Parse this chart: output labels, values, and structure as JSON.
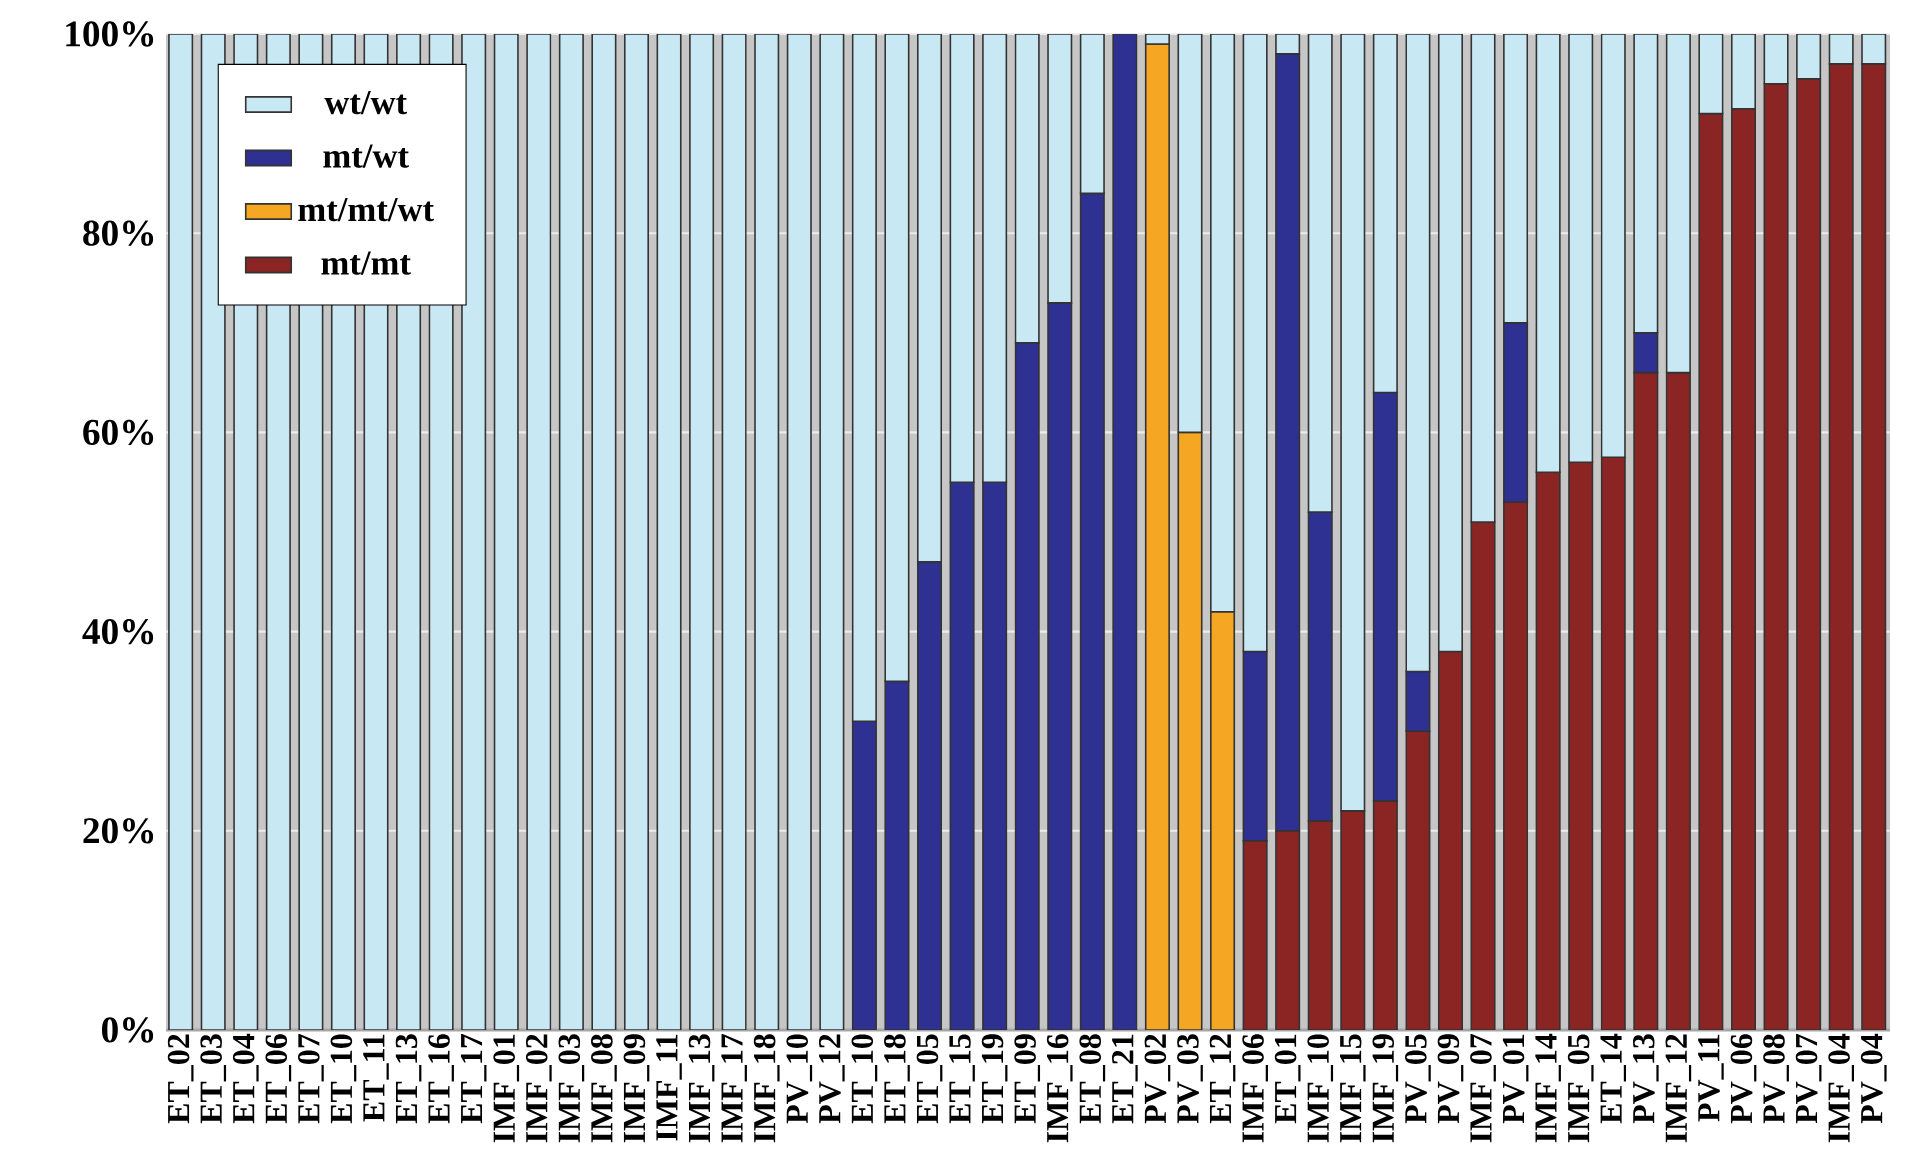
{
  "chart_data": {
    "type": "bar",
    "stacked": true,
    "grid": "y",
    "legend": "top left",
    "categories": [
      "ET_02",
      "ET_03",
      "ET_04",
      "ET_06",
      "ET_07",
      "ET_10",
      "ET_11",
      "ET_13",
      "ET_16",
      "ET_17",
      "IMF_01",
      "IMF_02",
      "IMF_03",
      "IMF_08",
      "IMF_09",
      "IMF_11",
      "IMF_13",
      "IMF_17",
      "IMF_18",
      "PV_10",
      "PV_12",
      "ET_10",
      "ET_18",
      "ET_05",
      "ET_15",
      "ET_19",
      "ET_09",
      "IMF_16",
      "ET_08",
      "ET_21",
      "PV_02",
      "PV_03",
      "ET_12",
      "IMF_06",
      "ET_01",
      "IMF_10",
      "IMF_15",
      "IMF_19",
      "PV_05",
      "PV_09",
      "IMF_07",
      "PV_01",
      "IMF_14",
      "IMF_05",
      "ET_14",
      "PV_13",
      "IMF_12",
      "PV_11",
      "PV_06",
      "PV_08",
      "PV_07",
      "IMF_04",
      "PV_04"
    ],
    "ylim": [
      0,
      100
    ],
    "yticks": [
      {
        "value": 0,
        "label": "0%"
      },
      {
        "value": 20,
        "label": "20%"
      },
      {
        "value": 40,
        "label": "40%"
      },
      {
        "value": 60,
        "label": "60%"
      },
      {
        "value": 80,
        "label": "80%"
      },
      {
        "value": 100,
        "label": "100%"
      }
    ],
    "series": [
      {
        "name": "mt/mt",
        "color": "#8b2524",
        "values": [
          null,
          null,
          null,
          null,
          null,
          null,
          null,
          null,
          null,
          null,
          null,
          null,
          null,
          null,
          null,
          null,
          null,
          null,
          null,
          null,
          null,
          null,
          null,
          null,
          null,
          null,
          null,
          null,
          null,
          null,
          null,
          null,
          null,
          19,
          20,
          21,
          22,
          23,
          30,
          38,
          51,
          53,
          56,
          57,
          57.5,
          66,
          66,
          92,
          92.5,
          95,
          95.5,
          97,
          97
        ]
      },
      {
        "name": "mt/mt/wt",
        "color": "#f5a623",
        "values": [
          null,
          null,
          null,
          null,
          null,
          null,
          null,
          null,
          null,
          null,
          null,
          null,
          null,
          null,
          null,
          null,
          null,
          null,
          null,
          null,
          null,
          null,
          null,
          null,
          null,
          null,
          null,
          null,
          null,
          null,
          99,
          60,
          42,
          null,
          null,
          null,
          null,
          null,
          null,
          null,
          null,
          null,
          null,
          null,
          null,
          null,
          null,
          null,
          null,
          null,
          null,
          null,
          null
        ]
      },
      {
        "name": "mt/wt",
        "color": "#2e3192",
        "values": [
          null,
          null,
          null,
          null,
          null,
          null,
          null,
          null,
          null,
          null,
          null,
          null,
          null,
          null,
          null,
          null,
          null,
          null,
          null,
          null,
          null,
          31,
          35,
          47,
          55,
          55,
          69,
          73,
          84,
          100,
          null,
          null,
          null,
          19,
          78,
          31,
          null,
          41,
          6,
          null,
          null,
          18,
          null,
          null,
          null,
          4,
          null,
          null,
          null,
          null,
          null,
          null,
          null
        ]
      },
      {
        "name": "wt/wt",
        "color": "#c8e8f4",
        "values": [
          100,
          100,
          100,
          100,
          100,
          100,
          100,
          100,
          100,
          100,
          100,
          100,
          100,
          100,
          100,
          100,
          100,
          100,
          100,
          100,
          100,
          69,
          65,
          53,
          45,
          45,
          31,
          27,
          16,
          null,
          1,
          40,
          58,
          62,
          2,
          48,
          78,
          36,
          64,
          62,
          49,
          29,
          44,
          43,
          42.5,
          30,
          34,
          8,
          7.5,
          5,
          4.5,
          3,
          3
        ]
      }
    ]
  }
}
